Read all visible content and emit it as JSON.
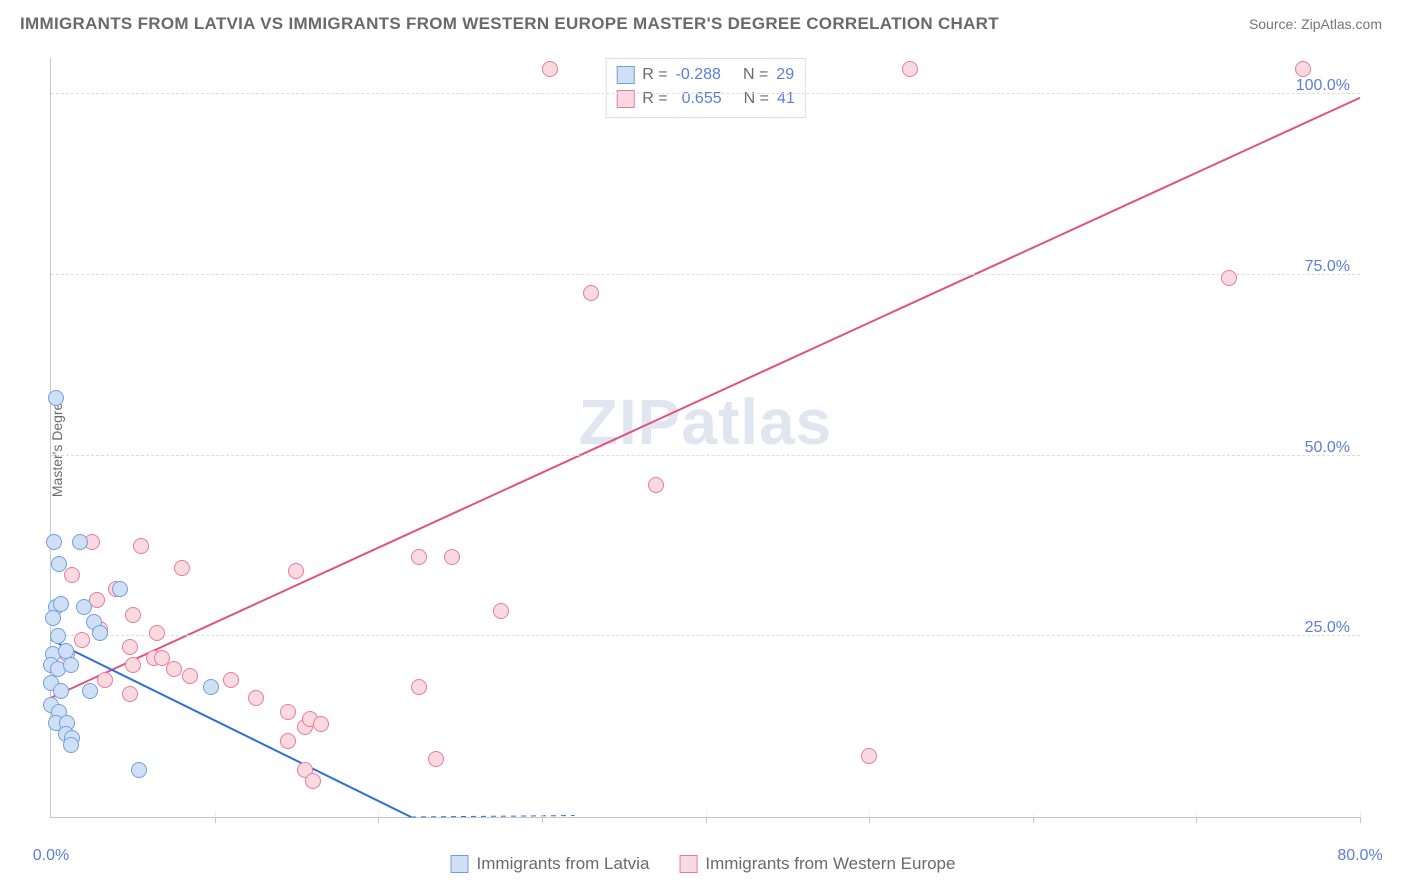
{
  "title": "IMMIGRANTS FROM LATVIA VS IMMIGRANTS FROM WESTERN EUROPE MASTER'S DEGREE CORRELATION CHART",
  "source": "Source: ZipAtlas.com",
  "ylabel": "Master's Degree",
  "watermark_a": "ZIP",
  "watermark_b": "atlas",
  "chart": {
    "type": "scatter",
    "xlim": [
      0,
      80
    ],
    "ylim": [
      0,
      105
    ],
    "xticks": [
      0,
      10,
      20,
      30,
      40,
      50,
      60,
      70,
      80
    ],
    "xtick_labels": {
      "0": "0.0%",
      "80": "80.0%"
    },
    "yticks": [
      25,
      50,
      75,
      100
    ],
    "ytick_labels": {
      "25": "25.0%",
      "50": "50.0%",
      "75": "75.0%",
      "100": "100.0%"
    },
    "grid_color": "#dddddd",
    "axis_color": "#c8c8c8",
    "background": "#ffffff",
    "text_color": "#6a6a6a",
    "tick_label_color": "#5a7fd6",
    "marker_radius": 8,
    "marker_stroke_width": 1.2
  },
  "series": {
    "latvia": {
      "label": "Immigrants from Latvia",
      "fill": "#cfe0f6",
      "stroke": "#6f9fe0",
      "R": "-0.288",
      "N": "29",
      "points": [
        [
          0.3,
          58
        ],
        [
          0.2,
          38
        ],
        [
          1.8,
          38
        ],
        [
          0.5,
          35
        ],
        [
          4.2,
          31.5
        ],
        [
          0.3,
          29
        ],
        [
          0.6,
          29.5
        ],
        [
          2.0,
          29
        ],
        [
          0.1,
          27.5
        ],
        [
          2.6,
          27
        ],
        [
          0.4,
          25
        ],
        [
          3.0,
          25.5
        ],
        [
          0.1,
          22.5
        ],
        [
          0.0,
          21
        ],
        [
          0.9,
          23
        ],
        [
          0.4,
          20.5
        ],
        [
          1.2,
          21
        ],
        [
          0.0,
          18.5
        ],
        [
          0.6,
          17.5
        ],
        [
          2.4,
          17.5
        ],
        [
          9.8,
          18
        ],
        [
          0.0,
          15.5
        ],
        [
          0.5,
          14.5
        ],
        [
          0.3,
          13
        ],
        [
          1.0,
          13
        ],
        [
          0.9,
          11.5
        ],
        [
          1.3,
          11
        ],
        [
          1.2,
          10
        ],
        [
          5.4,
          6.5
        ]
      ],
      "trend": {
        "x1": 0,
        "y1": 24.5,
        "x2": 22,
        "y2": 0,
        "color": "#2e6fd8",
        "width": 2.0,
        "dash_ext_to": [
          32,
          -11
        ]
      }
    },
    "western": {
      "label": "Immigrants from Western Europe",
      "fill": "#fbd9e1",
      "stroke": "#e77b9b",
      "R": "0.655",
      "N": "41",
      "points": [
        [
          30.5,
          103.5
        ],
        [
          52.5,
          103.5
        ],
        [
          76.5,
          103.5
        ],
        [
          72.0,
          74.5
        ],
        [
          33.0,
          72.5
        ],
        [
          37.0,
          46.0
        ],
        [
          50.0,
          8.5
        ],
        [
          2.5,
          38
        ],
        [
          5.5,
          37.5
        ],
        [
          22.5,
          36.0
        ],
        [
          24.5,
          36.0
        ],
        [
          15.0,
          34.0
        ],
        [
          8.0,
          34.5
        ],
        [
          1.3,
          33.5
        ],
        [
          4.0,
          31.5
        ],
        [
          2.8,
          30.0
        ],
        [
          27.5,
          28.5
        ],
        [
          5.0,
          28
        ],
        [
          3.0,
          26
        ],
        [
          6.5,
          25.5
        ],
        [
          1.9,
          24.5
        ],
        [
          1.0,
          22.5
        ],
        [
          4.8,
          23.5
        ],
        [
          6.3,
          22
        ],
        [
          6.8,
          22
        ],
        [
          5.0,
          21
        ],
        [
          7.5,
          20.5
        ],
        [
          3.3,
          19
        ],
        [
          8.5,
          19.5
        ],
        [
          11.0,
          19
        ],
        [
          22.5,
          18
        ],
        [
          4.8,
          17
        ],
        [
          12.5,
          16.5
        ],
        [
          14.5,
          14.5
        ],
        [
          15.5,
          12.5
        ],
        [
          15.8,
          13.5
        ],
        [
          16.5,
          12.8
        ],
        [
          14.5,
          10.5
        ],
        [
          15.5,
          6.5
        ],
        [
          16.0,
          5.0
        ],
        [
          23.5,
          8.0
        ]
      ],
      "trend": {
        "x1": 0,
        "y1": 16.5,
        "x2": 80,
        "y2": 99.5,
        "color": "#e0537c",
        "width": 2.0
      }
    }
  },
  "legend_stats": {
    "R_label": "R =",
    "N_label": "N ="
  }
}
